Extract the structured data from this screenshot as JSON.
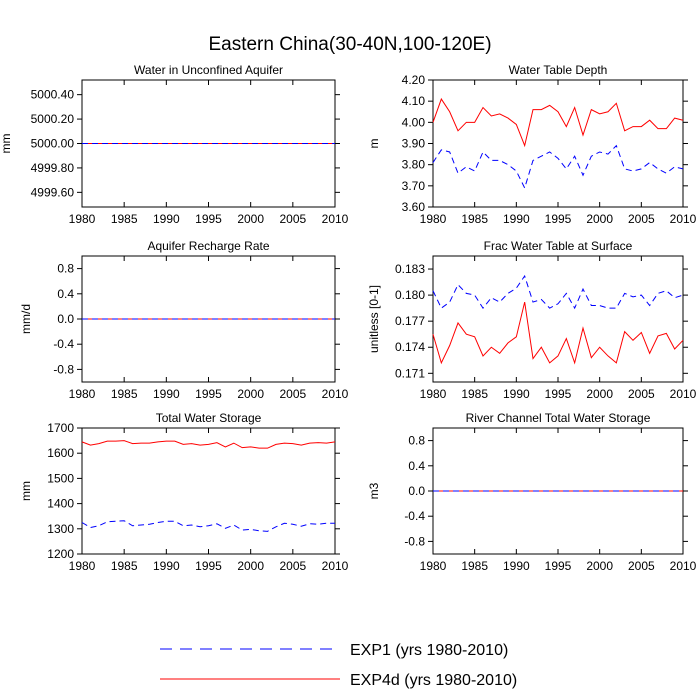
{
  "figure": {
    "title": "Eastern China(30-40N,100-120E)",
    "legend": {
      "placement": "bottom",
      "entries": [
        {
          "label": "EXP1 (yrs 1980-2010)",
          "color": "#0000ff",
          "style": "dashed"
        },
        {
          "label": "EXP4d (yrs 1980-2010)",
          "color": "#ff0000",
          "style": "solid"
        }
      ]
    }
  },
  "chart_data": [
    {
      "type": "line",
      "title": "Water in Unconfined Aquifer",
      "xlabel": "",
      "ylabel": "mm",
      "xlim": [
        1980,
        2010
      ],
      "ylim": [
        4999.48,
        5000.52
      ],
      "xticks": [
        1980,
        1985,
        1990,
        1995,
        2000,
        2005,
        2010
      ],
      "yticks": [
        4999.6,
        4999.8,
        5000.0,
        5000.2,
        5000.4
      ],
      "ytick_labels": [
        "4999.60",
        "4999.80",
        "5000.00",
        "5000.20",
        "5000.40"
      ],
      "x": [
        1980,
        2010
      ],
      "series": [
        {
          "name": "EXP4d",
          "color": "#ff0000",
          "style": "solid",
          "values": [
            5000.0,
            5000.0
          ]
        },
        {
          "name": "EXP1",
          "color": "#0000ff",
          "style": "dashed",
          "values": [
            5000.0,
            5000.0
          ]
        }
      ]
    },
    {
      "type": "line",
      "title": "Water Table Depth",
      "xlabel": "",
      "ylabel": "m",
      "xlim": [
        1980,
        2010
      ],
      "ylim": [
        3.6,
        4.2
      ],
      "xticks": [
        1980,
        1985,
        1990,
        1995,
        2000,
        2005,
        2010
      ],
      "yticks": [
        3.6,
        3.7,
        3.8,
        3.9,
        4.0,
        4.1,
        4.2
      ],
      "ytick_labels": [
        "3.60",
        "3.70",
        "3.80",
        "3.90",
        "4.00",
        "4.10",
        "4.20"
      ],
      "x": [
        1980,
        1981,
        1982,
        1983,
        1984,
        1985,
        1986,
        1987,
        1988,
        1989,
        1990,
        1991,
        1992,
        1993,
        1994,
        1995,
        1996,
        1997,
        1998,
        1999,
        2000,
        2001,
        2002,
        2003,
        2004,
        2005,
        2006,
        2007,
        2008,
        2009,
        2010
      ],
      "series": [
        {
          "name": "EXP4d",
          "color": "#ff0000",
          "style": "solid",
          "values": [
            4.0,
            4.11,
            4.05,
            3.96,
            4.0,
            4.0,
            4.07,
            4.03,
            4.04,
            4.02,
            3.99,
            3.89,
            4.06,
            4.06,
            4.08,
            4.05,
            3.98,
            4.07,
            3.94,
            4.06,
            4.04,
            4.05,
            4.09,
            3.96,
            3.98,
            3.98,
            4.01,
            3.97,
            3.97,
            4.02,
            4.01
          ]
        },
        {
          "name": "EXP1",
          "color": "#0000ff",
          "style": "dashed",
          "values": [
            3.81,
            3.87,
            3.86,
            3.76,
            3.79,
            3.77,
            3.86,
            3.82,
            3.82,
            3.8,
            3.77,
            3.69,
            3.82,
            3.84,
            3.86,
            3.83,
            3.78,
            3.84,
            3.75,
            3.84,
            3.86,
            3.85,
            3.89,
            3.78,
            3.77,
            3.78,
            3.81,
            3.78,
            3.76,
            3.79,
            3.78
          ]
        }
      ]
    },
    {
      "type": "line",
      "title": "Aquifer Recharge Rate",
      "xlabel": "",
      "ylabel": "mm/d",
      "xlim": [
        1980,
        2010
      ],
      "ylim": [
        -1.0,
        1.0
      ],
      "xticks": [
        1980,
        1985,
        1990,
        1995,
        2000,
        2005,
        2010
      ],
      "yticks": [
        -0.8,
        -0.4,
        0.0,
        0.4,
        0.8
      ],
      "ytick_labels": [
        "-0.8",
        "-0.4",
        "0.0",
        "0.4",
        "0.8"
      ],
      "x": [
        1980,
        2010
      ],
      "series": [
        {
          "name": "EXP4d",
          "color": "#ff0000",
          "style": "solid",
          "values": [
            0.0,
            0.0
          ]
        },
        {
          "name": "EXP1",
          "color": "#0000ff",
          "style": "dashed",
          "values": [
            0.0,
            0.0
          ]
        }
      ]
    },
    {
      "type": "line",
      "title": "Frac Water Table at Surface",
      "xlabel": "",
      "ylabel": "unitless [0-1]",
      "xlim": [
        1980,
        2010
      ],
      "ylim": [
        0.17,
        0.1845
      ],
      "xticks": [
        1980,
        1985,
        1990,
        1995,
        2000,
        2005,
        2010
      ],
      "yticks": [
        0.171,
        0.174,
        0.177,
        0.18,
        0.183
      ],
      "ytick_labels": [
        "0.171",
        "0.174",
        "0.177",
        "0.180",
        "0.183"
      ],
      "x": [
        1980,
        1981,
        1982,
        1983,
        1984,
        1985,
        1986,
        1987,
        1988,
        1989,
        1990,
        1991,
        1992,
        1993,
        1994,
        1995,
        1996,
        1997,
        1998,
        1999,
        2000,
        2001,
        2002,
        2003,
        2004,
        2005,
        2006,
        2007,
        2008,
        2009,
        2010
      ],
      "series": [
        {
          "name": "EXP4d",
          "color": "#ff0000",
          "style": "solid",
          "values": [
            0.1755,
            0.1722,
            0.1742,
            0.1768,
            0.1755,
            0.1752,
            0.173,
            0.174,
            0.1733,
            0.1745,
            0.1752,
            0.1792,
            0.1727,
            0.174,
            0.1722,
            0.173,
            0.175,
            0.1722,
            0.1762,
            0.1728,
            0.174,
            0.173,
            0.1722,
            0.1758,
            0.1748,
            0.1757,
            0.1733,
            0.1753,
            0.1756,
            0.1738,
            0.1748
          ]
        },
        {
          "name": "EXP1",
          "color": "#0000ff",
          "style": "dashed",
          "values": [
            0.1805,
            0.1785,
            0.1792,
            0.1812,
            0.1802,
            0.18,
            0.1785,
            0.1797,
            0.1792,
            0.1802,
            0.1808,
            0.1822,
            0.1792,
            0.1795,
            0.1785,
            0.179,
            0.1802,
            0.1785,
            0.1807,
            0.1788,
            0.1788,
            0.1785,
            0.1785,
            0.1802,
            0.1798,
            0.18,
            0.1788,
            0.1802,
            0.1805,
            0.1797,
            0.18
          ]
        }
      ]
    },
    {
      "type": "line",
      "title": "Total Water Storage",
      "xlabel": "",
      "ylabel": "mm",
      "xlim": [
        1980,
        2010
      ],
      "ylim": [
        1200,
        1700
      ],
      "xticks": [
        1980,
        1985,
        1990,
        1995,
        2000,
        2005,
        2010
      ],
      "yticks": [
        1200,
        1300,
        1400,
        1500,
        1600,
        1700
      ],
      "ytick_labels": [
        "1200",
        "1300",
        "1400",
        "1500",
        "1600",
        "1700"
      ],
      "x": [
        1980,
        1981,
        1982,
        1983,
        1984,
        1985,
        1986,
        1987,
        1988,
        1989,
        1990,
        1991,
        1992,
        1993,
        1994,
        1995,
        1996,
        1997,
        1998,
        1999,
        2000,
        2001,
        2002,
        2003,
        2004,
        2005,
        2006,
        2007,
        2008,
        2009,
        2010
      ],
      "series": [
        {
          "name": "EXP4d",
          "color": "#ff0000",
          "style": "solid",
          "values": [
            1645,
            1632,
            1638,
            1648,
            1648,
            1650,
            1638,
            1640,
            1640,
            1645,
            1648,
            1648,
            1635,
            1638,
            1632,
            1635,
            1642,
            1625,
            1640,
            1622,
            1625,
            1620,
            1620,
            1635,
            1640,
            1638,
            1632,
            1640,
            1642,
            1640,
            1645
          ]
        },
        {
          "name": "EXP1",
          "color": "#0000ff",
          "style": "dashed",
          "values": [
            1325,
            1305,
            1312,
            1328,
            1330,
            1332,
            1312,
            1315,
            1318,
            1325,
            1330,
            1330,
            1312,
            1315,
            1308,
            1312,
            1320,
            1302,
            1315,
            1295,
            1298,
            1292,
            1290,
            1308,
            1322,
            1318,
            1310,
            1320,
            1318,
            1322,
            1322
          ]
        }
      ]
    },
    {
      "type": "line",
      "title": "River Channel Total Water Storage",
      "xlabel": "",
      "ylabel": "m3",
      "xlim": [
        1980,
        2010
      ],
      "ylim": [
        -1.0,
        1.0
      ],
      "xticks": [
        1980,
        1985,
        1990,
        1995,
        2000,
        2005,
        2010
      ],
      "yticks": [
        -0.8,
        -0.4,
        0.0,
        0.4,
        0.8
      ],
      "ytick_labels": [
        "-0.8",
        "-0.4",
        "0.0",
        "0.4",
        "0.8"
      ],
      "x": [
        1980,
        2010
      ],
      "series": [
        {
          "name": "EXP4d",
          "color": "#ff0000",
          "style": "solid",
          "values": [
            0.0,
            0.0
          ]
        },
        {
          "name": "EXP1",
          "color": "#0000ff",
          "style": "dashed",
          "values": [
            0.0,
            0.0
          ]
        }
      ]
    }
  ]
}
